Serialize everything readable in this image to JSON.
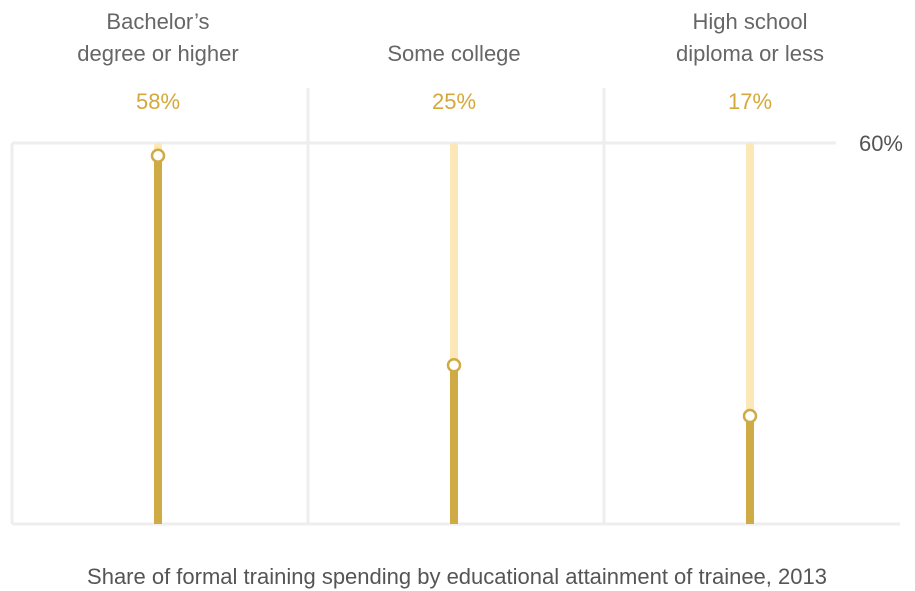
{
  "chart_data": {
    "type": "lollipop",
    "caption": "Share of formal training spending by educational attainment of trainee, 2013",
    "categories": [
      "Bachelor’s\ndegree or higher",
      "Some college",
      "High school\ndiploma or less"
    ],
    "values": [
      58,
      25,
      17
    ],
    "value_labels": [
      "58%",
      "25%",
      "17%"
    ],
    "color": "#cfab45",
    "track_color": "#fce8b6",
    "ylim": [
      0,
      60
    ],
    "yticks": [
      {
        "value": 60,
        "label": "60%"
      }
    ],
    "grid": true
  }
}
